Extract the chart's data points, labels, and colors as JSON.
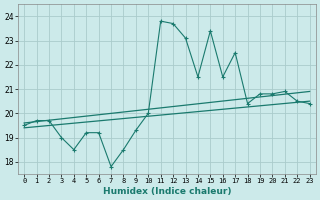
{
  "title": "",
  "xlabel": "Humidex (Indice chaleur)",
  "background_color": "#cceaea",
  "grid_color": "#aacccc",
  "line_color": "#1a7a6e",
  "xlim": [
    -0.5,
    23.5
  ],
  "ylim": [
    17.5,
    24.5
  ],
  "yticks": [
    18,
    19,
    20,
    21,
    22,
    23,
    24
  ],
  "xticks": [
    0,
    1,
    2,
    3,
    4,
    5,
    6,
    7,
    8,
    9,
    10,
    11,
    12,
    13,
    14,
    15,
    16,
    17,
    18,
    19,
    20,
    21,
    22,
    23
  ],
  "series1_x": [
    0,
    1,
    2,
    3,
    4,
    5,
    6,
    7,
    8,
    9,
    10,
    11,
    12,
    13,
    14,
    15,
    16,
    17,
    18,
    19,
    20,
    21,
    22,
    23
  ],
  "series1_y": [
    19.5,
    19.7,
    19.7,
    19.0,
    18.5,
    19.2,
    19.2,
    17.8,
    18.5,
    19.3,
    20.0,
    23.8,
    23.7,
    23.1,
    21.5,
    23.4,
    21.5,
    22.5,
    20.4,
    20.8,
    20.8,
    20.9,
    20.5,
    20.4
  ],
  "series2_x": [
    0,
    23
  ],
  "series2_y": [
    19.6,
    20.9
  ],
  "series3_x": [
    0,
    23
  ],
  "series3_y": [
    19.4,
    20.5
  ]
}
